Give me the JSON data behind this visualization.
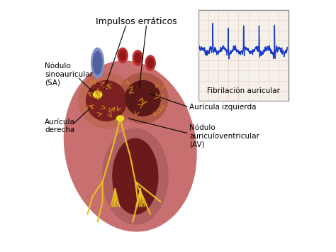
{
  "bg_color": "#ffffff",
  "ecg_bg": "#f5f0e8",
  "ecg_grid_color": "#e8c8c8",
  "ecg_line_color": "#1a3cc8",
  "ecg_label": "Fibrilación auricular",
  "heart_color": "#c87070",
  "heart_inner_color": "#7a2020",
  "sa_node_color": "#e8e020",
  "av_node_color": "#e8e020",
  "nerve_color": "#e8c020",
  "erratic_color": "#d08020",
  "vessel_blue": "#8090c0",
  "vessel_blue_inner": "#5060a0",
  "vessel_red": "#c03030",
  "vessel_red_inner": "#901818",
  "annotation_color": "#000000",
  "label_impulsos": "Impulsos erráticos",
  "label_sa": "Nódulo\nsinoauricular\n(SA)",
  "label_auricula_der": "Aurícula\nderecha",
  "label_auricula_izq": "Aurícula izquierda",
  "label_nodulo_av": "Nódulo\nauriculoventricular\n(AV)",
  "qrs_positions": [
    60,
    130,
    200,
    270,
    340
  ],
  "erratic_seed": 42,
  "ecg_seed": 7
}
